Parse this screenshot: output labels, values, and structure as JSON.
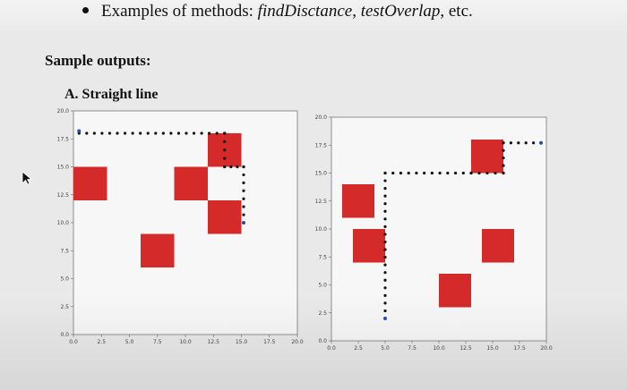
{
  "header": {
    "bullet_prefix": "Examples of methods: ",
    "method1": "findDisctance",
    "separator": ", ",
    "method2": "testOverlap",
    "suffix": ", etc."
  },
  "section": {
    "title": "Sample outputs:",
    "subtitle": "A. Straight line"
  },
  "colors": {
    "obstacle": "#d42a2a",
    "path": "#111111",
    "endpoint": "#1f4fb0"
  },
  "plots": [
    {
      "xlim": [
        0,
        20
      ],
      "ylim": [
        0,
        20
      ],
      "xticks": [
        "0.0",
        "2.5",
        "5.0",
        "7.5",
        "10.0",
        "12.5",
        "15.0",
        "17.5",
        "20.0"
      ],
      "yticks": [
        "0.0",
        "2.5",
        "5.0",
        "7.5",
        "10.0",
        "12.5",
        "15.0",
        "17.5",
        "20.0"
      ],
      "squares": [
        {
          "x": 0,
          "y": 12,
          "w": 3,
          "h": 3
        },
        {
          "x": 9,
          "y": 12,
          "w": 3,
          "h": 3
        },
        {
          "x": 12,
          "y": 15,
          "w": 3,
          "h": 3
        },
        {
          "x": 12,
          "y": 9,
          "w": 3,
          "h": 3
        },
        {
          "x": 6,
          "y": 6,
          "w": 3,
          "h": 3
        }
      ],
      "path": [
        {
          "x": 0.5,
          "y": 18
        },
        {
          "x": 13.5,
          "y": 18
        },
        {
          "x": 13.5,
          "y": 15
        },
        {
          "x": 15.2,
          "y": 15
        },
        {
          "x": 15.2,
          "y": 10
        }
      ],
      "start": {
        "x": 0.5,
        "y": 18.2
      },
      "end": {
        "x": 15.2,
        "y": 10
      }
    },
    {
      "xlim": [
        0,
        20
      ],
      "ylim": [
        0,
        20
      ],
      "xticks": [
        "0.0",
        "2.5",
        "5.0",
        "7.5",
        "10.0",
        "12.5",
        "15.0",
        "17.5",
        "20.0"
      ],
      "yticks": [
        "0.0",
        "2.5",
        "5.0",
        "7.5",
        "10.0",
        "12.5",
        "15.0",
        "17.5",
        "20.0"
      ],
      "squares": [
        {
          "x": 1,
          "y": 11,
          "w": 3,
          "h": 3
        },
        {
          "x": 2,
          "y": 7,
          "w": 3,
          "h": 3
        },
        {
          "x": 10,
          "y": 3,
          "w": 3,
          "h": 3
        },
        {
          "x": 13,
          "y": 15,
          "w": 3,
          "h": 3
        },
        {
          "x": 14,
          "y": 7,
          "w": 3,
          "h": 3
        }
      ],
      "path": [
        {
          "x": 5,
          "y": 2
        },
        {
          "x": 5,
          "y": 15
        },
        {
          "x": 13,
          "y": 15
        },
        {
          "x": 16,
          "y": 15
        },
        {
          "x": 16,
          "y": 17.7
        },
        {
          "x": 19.5,
          "y": 17.7
        }
      ],
      "start": {
        "x": 5,
        "y": 2
      },
      "end": {
        "x": 19.5,
        "y": 17.7
      }
    }
  ]
}
